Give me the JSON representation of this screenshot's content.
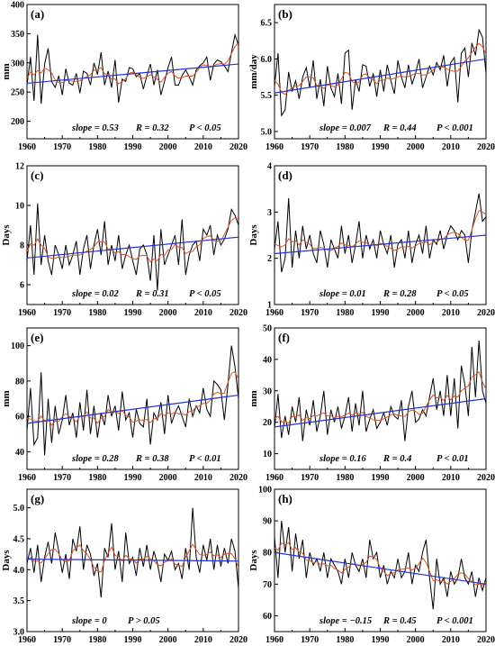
{
  "colors": {
    "raw": "#000000",
    "smooth": "#d9542e",
    "trend": "#2332d8"
  },
  "chart_data": [
    {
      "id": "a",
      "type": "line",
      "panel_label": "(a)",
      "ylabel": "mm",
      "xlim": [
        1960,
        2020
      ],
      "ylim": [
        170,
        400
      ],
      "xticks": [
        1960,
        1970,
        1980,
        1990,
        2000,
        2010,
        2020
      ],
      "yticks": [
        200,
        250,
        300,
        350,
        400
      ],
      "show_top_ytick": true,
      "x_start": 1960,
      "series": [
        {
          "values": [
            262,
            310,
            235,
            348,
            230,
            298,
            325,
            268,
            258,
            278,
            245,
            290,
            265,
            262,
            282,
            248,
            286,
            282,
            262,
            300,
            280,
            318,
            262,
            286,
            258,
            305,
            232,
            272,
            268,
            292,
            290,
            276,
            282,
            255,
            278,
            298,
            262,
            288,
            245,
            268,
            292,
            310,
            262,
            262,
            278,
            288,
            276,
            262,
            288,
            295,
            300,
            310,
            270,
            298,
            305,
            302,
            295,
            285,
            318,
            348,
            330
          ]
        }
      ],
      "trend": {
        "start": 265,
        "end": 298
      },
      "annotation": {
        "slope": "slope = 0.53",
        "r": "R = 0.32",
        "p": "P < 0.05"
      }
    },
    {
      "id": "b",
      "type": "line",
      "panel_label": "(b)",
      "ylabel": "mm/day",
      "xlim": [
        1960,
        2020
      ],
      "ylim": [
        4.9,
        6.75
      ],
      "xticks": [
        1960,
        1970,
        1980,
        1990,
        2000,
        2010,
        2020
      ],
      "yticks": [
        5.0,
        5.5,
        6.0,
        6.5
      ],
      "show_top_ytick": false,
      "x_start": 1960,
      "series": [
        {
          "values": [
            5.62,
            6.08,
            5.22,
            5.3,
            5.82,
            5.55,
            5.7,
            5.45,
            5.75,
            5.88,
            5.6,
            5.98,
            5.45,
            5.72,
            5.35,
            5.9,
            5.6,
            5.48,
            5.8,
            5.38,
            6.08,
            6.12,
            5.3,
            5.72,
            5.55,
            5.92,
            5.9,
            5.62,
            5.8,
            5.48,
            5.85,
            5.55,
            5.92,
            5.7,
            5.52,
            5.98,
            5.75,
            5.6,
            5.92,
            5.65,
            5.8,
            6.0,
            5.6,
            5.75,
            5.9,
            5.78,
            5.95,
            5.85,
            6.05,
            5.62,
            5.95,
            6.02,
            5.4,
            6.08,
            6.15,
            5.75,
            6.22,
            6.05,
            6.4,
            6.3,
            5.8
          ]
        }
      ],
      "trend": {
        "start": 5.53,
        "end": 6.0
      },
      "annotation": {
        "slope": "slope = 0.007",
        "r": "R = 0.44",
        "p": "P < 0.001"
      }
    },
    {
      "id": "c",
      "type": "line",
      "panel_label": "(c)",
      "ylabel": "Days",
      "xlim": [
        1960,
        2020
      ],
      "ylim": [
        5,
        12
      ],
      "xticks": [
        1960,
        1970,
        1980,
        1990,
        2000,
        2010,
        2020
      ],
      "yticks": [
        6,
        8,
        10,
        12
      ],
      "show_top_ytick": true,
      "x_start": 1960,
      "series": [
        {
          "values": [
            7.2,
            9.0,
            6.5,
            10.1,
            7.0,
            8.5,
            7.2,
            6.5,
            8.0,
            7.5,
            6.8,
            8.0,
            7.0,
            7.5,
            8.2,
            6.5,
            7.8,
            8.5,
            6.8,
            8.0,
            8.8,
            7.5,
            9.2,
            7.0,
            8.0,
            7.2,
            8.5,
            6.8,
            7.5,
            8.0,
            7.2,
            6.5,
            7.8,
            8.0,
            7.5,
            6.2,
            8.5,
            5.7,
            8.8,
            7.0,
            7.5,
            8.0,
            8.5,
            7.0,
            9.3,
            6.5,
            7.5,
            8.0,
            8.2,
            7.2,
            8.8,
            8.5,
            9.0,
            7.5,
            8.5,
            8.0,
            8.3,
            8.8,
            9.8,
            9.5,
            9.0
          ]
        }
      ],
      "trend": {
        "start": 7.35,
        "end": 8.4
      },
      "annotation": {
        "slope": "slope = 0.02",
        "r": "R = 0.31",
        "p": "P < 0.05"
      }
    },
    {
      "id": "d",
      "type": "line",
      "panel_label": "(d)",
      "ylabel": "Days",
      "xlim": [
        1960,
        2020
      ],
      "ylim": [
        1,
        4
      ],
      "xticks": [
        1960,
        1970,
        1980,
        1990,
        2000,
        2010,
        2020
      ],
      "yticks": [
        1,
        2,
        3,
        4
      ],
      "show_top_ytick": true,
      "x_start": 1960,
      "series": [
        {
          "values": [
            2.2,
            2.8,
            1.7,
            2.0,
            3.3,
            1.8,
            2.6,
            2.0,
            2.7,
            2.2,
            2.5,
            2.1,
            1.9,
            2.6,
            2.3,
            1.8,
            2.4,
            2.2,
            2.0,
            2.7,
            2.1,
            2.5,
            1.9,
            2.3,
            2.8,
            2.0,
            2.5,
            2.2,
            2.4,
            2.0,
            2.6,
            2.3,
            2.1,
            2.5,
            1.8,
            2.3,
            2.4,
            2.0,
            2.6,
            1.9,
            2.3,
            2.5,
            2.1,
            2.7,
            2.0,
            2.4,
            2.3,
            2.6,
            2.2,
            2.5,
            2.7,
            2.6,
            2.4,
            2.6,
            2.5,
            1.9,
            2.6,
            3.0,
            3.4,
            2.8,
            2.9
          ]
        }
      ],
      "trend": {
        "start": 2.1,
        "end": 2.5
      },
      "annotation": {
        "slope": "slope = 0.01",
        "r": "R = 0.28",
        "p": "P < 0.05"
      }
    },
    {
      "id": "e",
      "type": "line",
      "panel_label": "(e)",
      "ylabel": "mm",
      "xlim": [
        1960,
        2020
      ],
      "ylim": [
        30,
        110
      ],
      "xticks": [
        1960,
        1970,
        1980,
        1990,
        2000,
        2010,
        2020
      ],
      "yticks": [
        40,
        60,
        80,
        100
      ],
      "show_top_ytick": false,
      "x_start": 1960,
      "series": [
        {
          "values": [
            52,
            76,
            44,
            48,
            85,
            38,
            70,
            45,
            66,
            50,
            58,
            72,
            55,
            62,
            48,
            68,
            52,
            75,
            50,
            66,
            48,
            62,
            55,
            72,
            60,
            66,
            52,
            74,
            58,
            62,
            48,
            64,
            56,
            54,
            70,
            44,
            62,
            58,
            68,
            50,
            72,
            56,
            62,
            66,
            60,
            54,
            70,
            60,
            66,
            62,
            76,
            64,
            60,
            80,
            78,
            75,
            58,
            78,
            100,
            88,
            70
          ]
        }
      ],
      "trend": {
        "start": 56,
        "end": 72
      },
      "annotation": {
        "slope": "slope = 0.28",
        "r": "R = 0.38",
        "p": "P < 0.01"
      }
    },
    {
      "id": "f",
      "type": "line",
      "panel_label": "(f)",
      "ylabel": "mm",
      "xlim": [
        1960,
        2020
      ],
      "ylim": [
        5,
        50
      ],
      "xticks": [
        1960,
        1970,
        1980,
        1990,
        2000,
        2010,
        2020
      ],
      "yticks": [
        10,
        20,
        30,
        40,
        50
      ],
      "show_top_ytick": true,
      "x_start": 1960,
      "series": [
        {
          "values": [
            18,
            29,
            15,
            22,
            16,
            25,
            20,
            28,
            14,
            24,
            19,
            27,
            17,
            22,
            30,
            16,
            24,
            20,
            25,
            18,
            22,
            28,
            17,
            26,
            19,
            30,
            17,
            21,
            24,
            18,
            20,
            23,
            19,
            25,
            22,
            21,
            27,
            14,
            25,
            30,
            20,
            21,
            24,
            22,
            28,
            34,
            24,
            30,
            22,
            35,
            22,
            34,
            18,
            38,
            32,
            22,
            44,
            28,
            46,
            30,
            26
          ]
        }
      ],
      "trend": {
        "start": 18.5,
        "end": 27.5
      },
      "annotation": {
        "slope": "slope = 0.16",
        "r": "R = 0.4",
        "p": "P < 0.01"
      }
    },
    {
      "id": "g",
      "type": "line",
      "panel_label": "(g)",
      "ylabel": "Days",
      "xlim": [
        1960,
        2020
      ],
      "ylim": [
        3.0,
        5.3
      ],
      "xticks": [
        1960,
        1970,
        1980,
        1990,
        2000,
        2010,
        2020
      ],
      "yticks": [
        3.0,
        3.5,
        4.0,
        4.5,
        5.0
      ],
      "show_top_ytick": false,
      "x_start": 1960,
      "series": [
        {
          "values": [
            4.1,
            4.35,
            3.95,
            4.4,
            3.8,
            4.2,
            4.45,
            4.1,
            4.6,
            4.3,
            3.95,
            4.25,
            3.85,
            4.5,
            4.3,
            4.7,
            4.0,
            4.4,
            4.25,
            3.9,
            4.1,
            3.55,
            4.35,
            4.2,
            4.75,
            4.0,
            4.3,
            3.8,
            4.6,
            4.1,
            4.2,
            3.9,
            4.35,
            4.05,
            4.4,
            4.0,
            4.3,
            4.1,
            3.8,
            4.25,
            4.15,
            4.3,
            4.0,
            4.1,
            3.85,
            4.35,
            4.0,
            5.0,
            4.2,
            3.95,
            4.4,
            4.15,
            4.5,
            4.0,
            4.4,
            4.05,
            4.35,
            4.1,
            4.5,
            4.3,
            3.7
          ]
        }
      ],
      "trend": {
        "start": 4.17,
        "end": 4.14
      },
      "annotation": {
        "slope": "slope = 0",
        "p": "P > 0.05"
      }
    },
    {
      "id": "h",
      "type": "line",
      "panel_label": "(h)",
      "ylabel": "Days",
      "xlim": [
        1960,
        2020
      ],
      "ylim": [
        55,
        100
      ],
      "xticks": [
        1960,
        1970,
        1980,
        1990,
        2000,
        2010,
        2020
      ],
      "yticks": [
        60,
        70,
        80,
        90,
        100
      ],
      "show_top_ytick": true,
      "x_start": 1960,
      "series": [
        {
          "values": [
            85,
            72,
            90,
            80,
            88,
            74,
            86,
            78,
            84,
            72,
            80,
            76,
            78,
            74,
            80,
            72,
            78,
            76,
            74,
            70,
            78,
            72,
            80,
            76,
            74,
            78,
            72,
            84,
            78,
            80,
            72,
            76,
            70,
            74,
            72,
            78,
            72,
            74,
            80,
            70,
            76,
            74,
            80,
            84,
            72,
            62,
            78,
            70,
            72,
            66,
            74,
            70,
            72,
            78,
            72,
            70,
            74,
            66,
            72,
            68,
            72
          ]
        }
      ],
      "trend": {
        "start": 80,
        "end": 70
      },
      "annotation": {
        "slope": "slope = −0.15",
        "r": "R = 0.45",
        "p": "P < 0.001"
      }
    }
  ]
}
